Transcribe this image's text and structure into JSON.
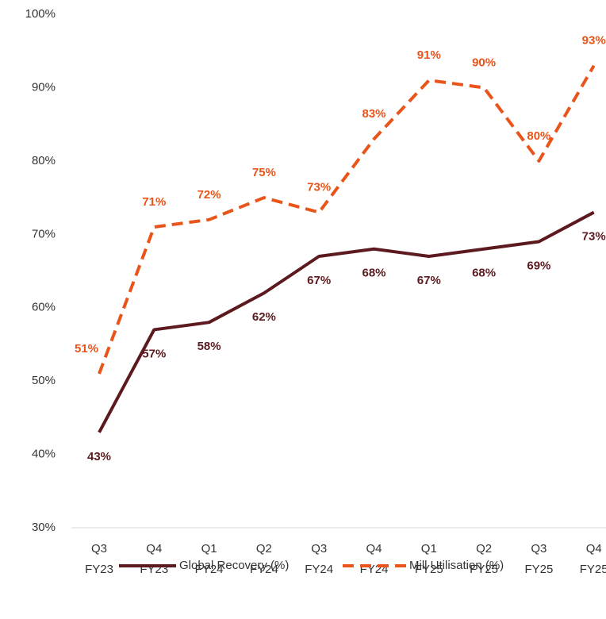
{
  "chart_data": {
    "type": "line",
    "categories": [
      [
        "Q3",
        "FY23"
      ],
      [
        "Q4",
        "FY23"
      ],
      [
        "Q1",
        "FY24"
      ],
      [
        "Q2",
        "FY24"
      ],
      [
        "Q3",
        "FY24"
      ],
      [
        "Q4",
        "FY24"
      ],
      [
        "Q1",
        "FY25"
      ],
      [
        "Q2",
        "FY25"
      ],
      [
        "Q3",
        "FY25"
      ],
      [
        "Q4",
        "FY25"
      ]
    ],
    "series": [
      {
        "name": "Global Recovery (%)",
        "color": "#5c1a1f",
        "dashed": false,
        "values": [
          43,
          57,
          58,
          62,
          67,
          68,
          67,
          68,
          69,
          73
        ],
        "value_labels": [
          "43%",
          "57%",
          "58%",
          "62%",
          "67%",
          "68%",
          "67%",
          "68%",
          "69%",
          "73%"
        ]
      },
      {
        "name": "Mill Utilisation (%)",
        "color": "#e8541a",
        "dashed": true,
        "values": [
          51,
          71,
          72,
          75,
          73,
          83,
          91,
          90,
          80,
          93
        ],
        "value_labels": [
          "51%",
          "71%",
          "72%",
          "75%",
          "73%",
          "83%",
          "91%",
          "90%",
          "80%",
          "93%"
        ]
      }
    ],
    "ylim": [
      30,
      100
    ],
    "yticks": [
      {
        "value": 30,
        "label": "30%"
      },
      {
        "value": 40,
        "label": "40%"
      },
      {
        "value": 50,
        "label": "50%"
      },
      {
        "value": 60,
        "label": "60%"
      },
      {
        "value": 70,
        "label": "70%"
      },
      {
        "value": 80,
        "label": "80%"
      },
      {
        "value": 90,
        "label": "90%"
      },
      {
        "value": 100,
        "label": "100%"
      }
    ],
    "grid": false,
    "legend": "bottom"
  }
}
